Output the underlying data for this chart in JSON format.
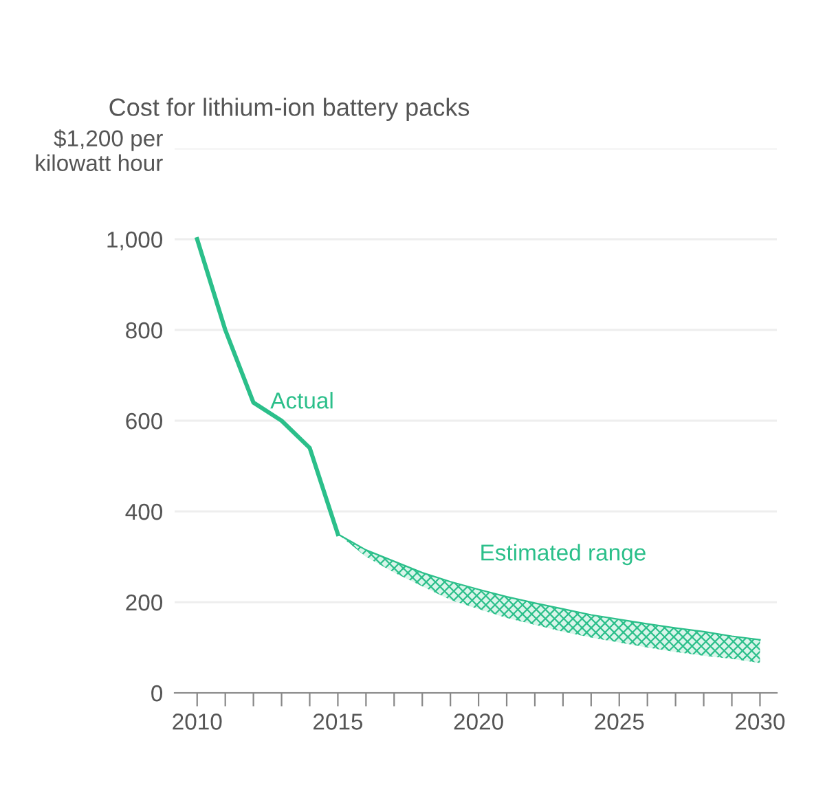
{
  "chart_data": {
    "type": "line",
    "title": "Cost for lithium-ion battery packs",
    "series": [
      {
        "name": "Actual",
        "color": "#2bbf8a",
        "x": [
          2010,
          2011,
          2012,
          2013,
          2014,
          2015
        ],
        "values": [
          1000,
          800,
          640,
          600,
          540,
          350
        ]
      },
      {
        "name": "Estimated range",
        "type": "line",
        "color": "#2bbf8a",
        "x": [
          2015,
          2016,
          2017,
          2018,
          2019,
          2020,
          2021,
          2022,
          2023,
          2024,
          2025,
          2026,
          2027,
          2028,
          2029,
          2030
        ],
        "values": [
          350,
          315,
          290,
          265,
          245,
          228,
          212,
          198,
          185,
          172,
          162,
          152,
          143,
          135,
          125,
          117
        ],
        "lower": [
          350,
          300,
          265,
          235,
          205,
          185,
          165,
          150,
          135,
          122,
          111,
          100,
          90,
          82,
          75,
          66
        ],
        "upper": [
          350,
          315,
          290,
          265,
          245,
          228,
          212,
          198,
          185,
          172,
          162,
          152,
          143,
          135,
          125,
          117
        ]
      }
    ],
    "xlim": [
      2009.2,
      2030.6
    ],
    "xticks": [
      2010,
      {
        "value": 2011,
        "label": null
      },
      {
        "value": 2012,
        "label": null
      },
      {
        "value": 2013,
        "label": null
      },
      {
        "value": 2014,
        "label": null
      },
      2015,
      {
        "value": 2016,
        "label": null
      },
      {
        "value": 2017,
        "label": null
      },
      {
        "value": 2018,
        "label": null
      },
      {
        "value": 2019,
        "label": null
      },
      2020,
      {
        "value": 2021,
        "label": null
      },
      {
        "value": 2022,
        "label": null
      },
      {
        "value": 2023,
        "label": null
      },
      {
        "value": 2024,
        "label": null
      },
      2025,
      {
        "value": 2026,
        "label": null
      },
      {
        "value": 2027,
        "label": null
      },
      {
        "value": 2028,
        "label": null
      },
      {
        "value": 2029,
        "label": null
      },
      2030
    ],
    "ylim": [
      0,
      1200
    ],
    "yticks": [
      0,
      200,
      {
        "value": 400,
        "label": "400"
      },
      {
        "value": 600,
        "label": "600"
      },
      {
        "value": 800,
        "label": "800"
      },
      {
        "value": 1000,
        "label": "1,000"
      },
      {
        "value": 1200,
        "label": "$1,200 per kilowatt hour"
      }
    ],
    "grid": "y"
  }
}
